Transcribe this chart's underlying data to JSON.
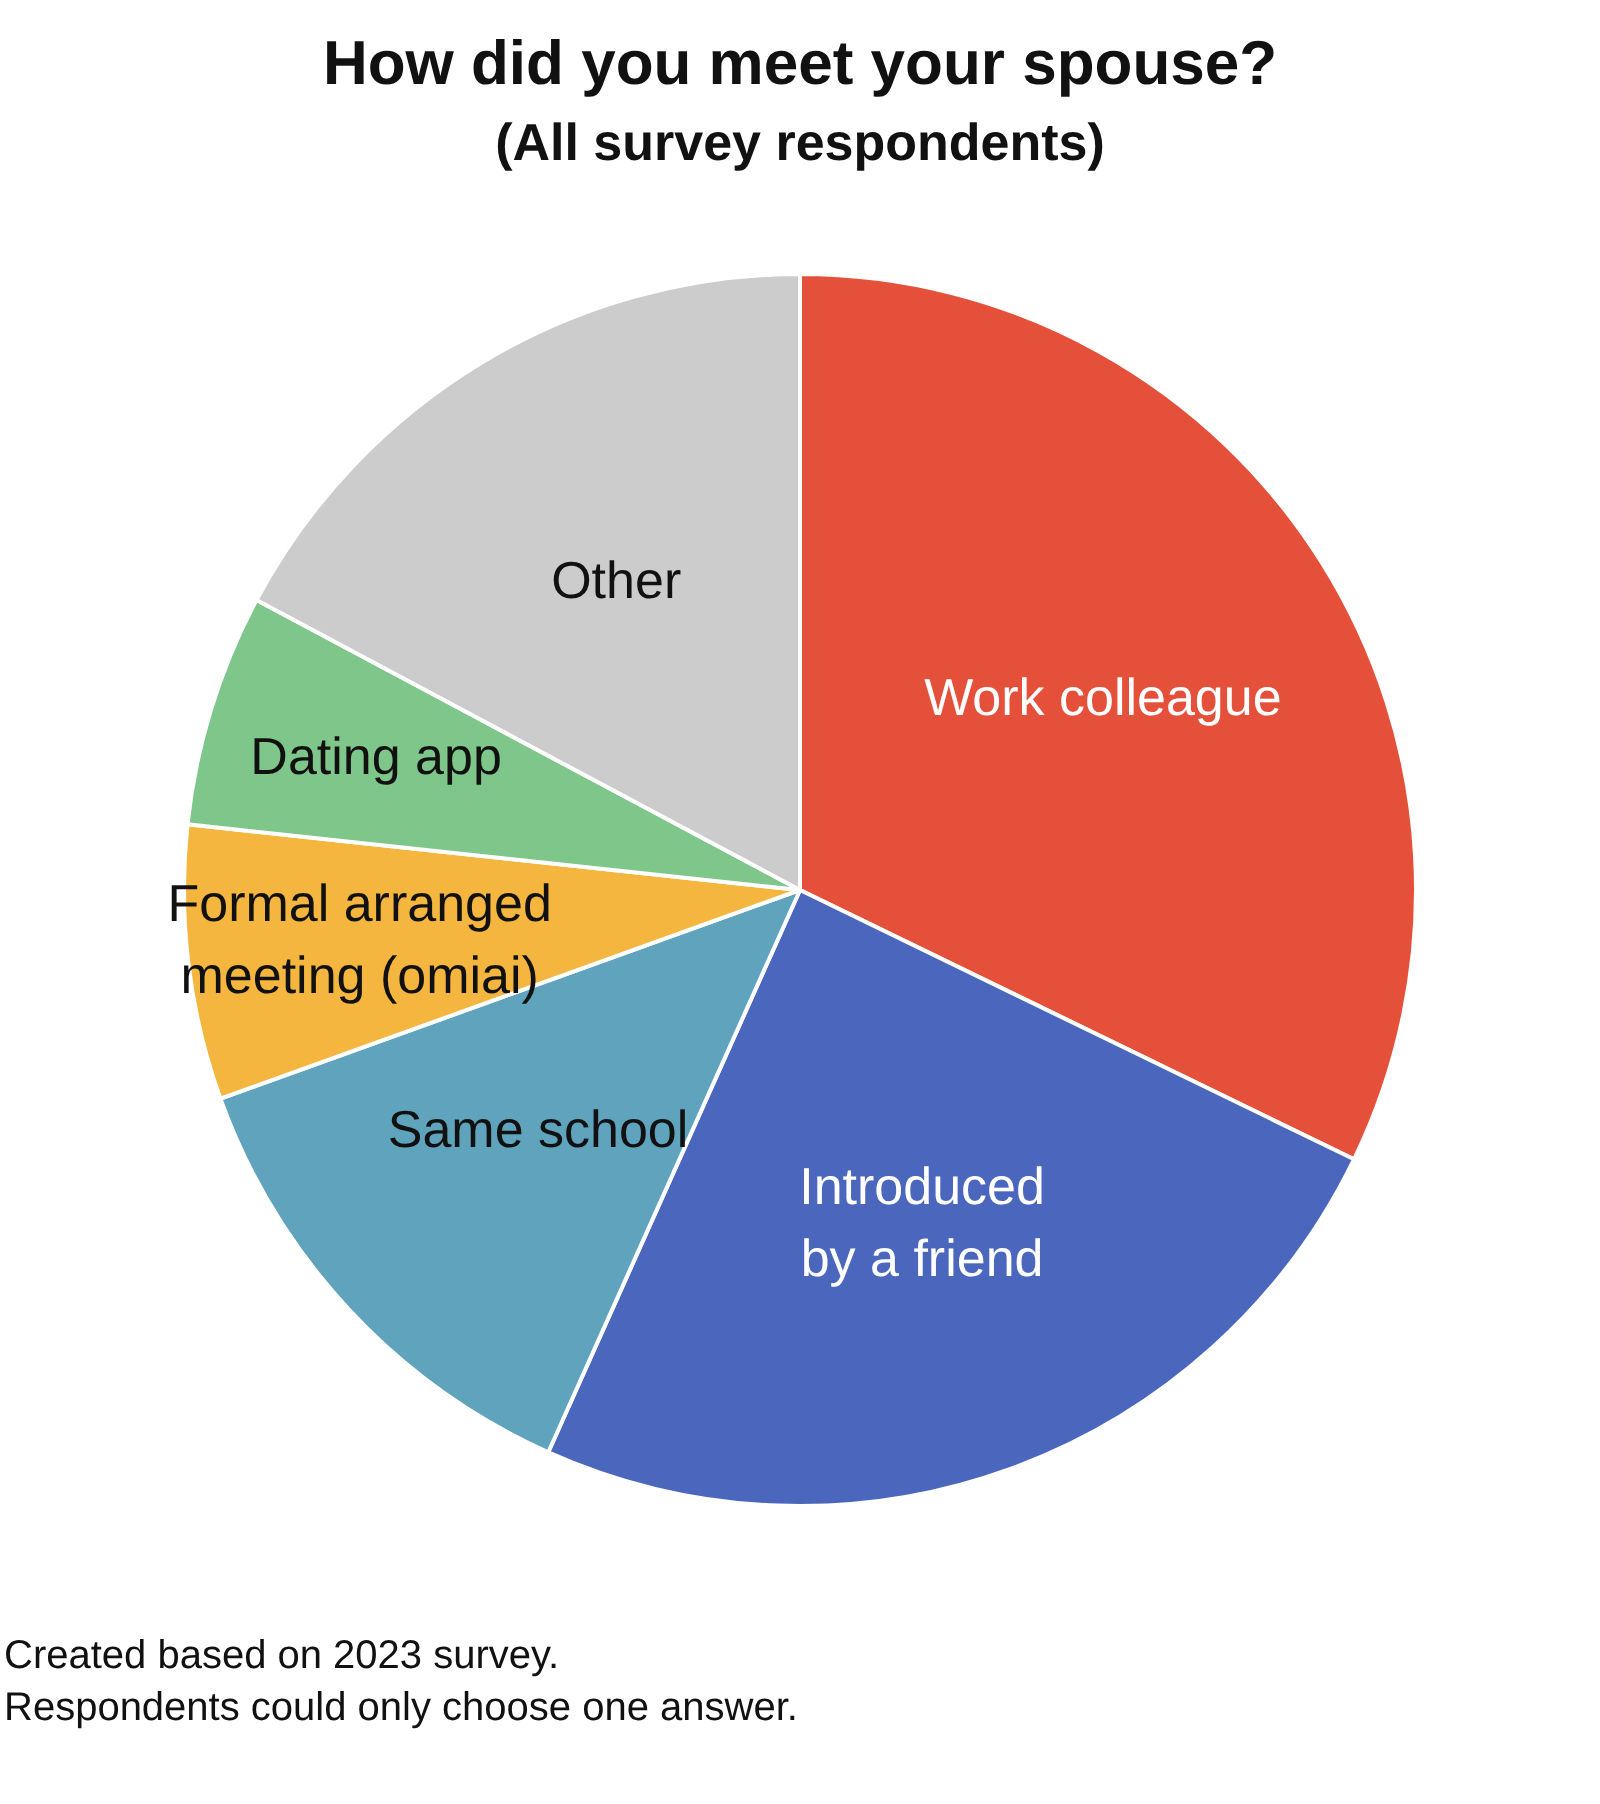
{
  "chart_data": {
    "type": "pie",
    "title": "How did you meet your spouse?",
    "subtitle": "(All survey respondents)",
    "categories": [
      "Work colleague",
      "Introduced by a friend",
      "Same school",
      "Formal arranged meeting (omiai)",
      "Dating app",
      "Other"
    ],
    "values": [
      32.2,
      24.5,
      12.8,
      7.2,
      6.1,
      17.2
    ],
    "colors": [
      "#e4503a",
      "#4a67bd",
      "#5fa3bd",
      "#f4b63f",
      "#7fc68a",
      "#cccccc"
    ],
    "legend": false,
    "annotations": [
      "Created based on 2023 survey.",
      "Respondents could only choose one answer."
    ]
  }
}
